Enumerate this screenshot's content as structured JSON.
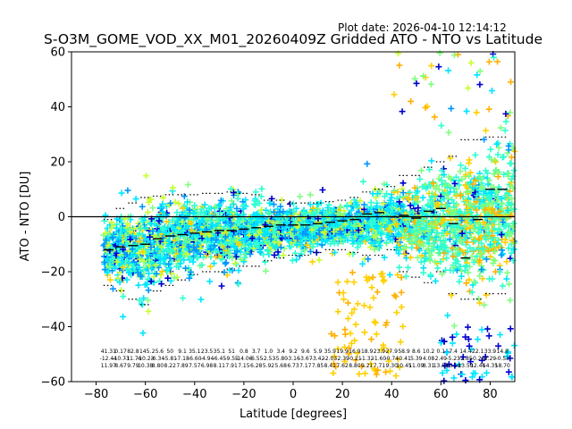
{
  "chart_data": {
    "type": "scatter",
    "title": "S-O3M_GOME_VOD_XX_M01_20260409Z Gridded ATO - NTO vs Latitude",
    "plot_date": "Plot date: 2026-04-10 12:14:12",
    "xlabel": "Latitude [degrees]",
    "ylabel": "ATO - NTO [DU]",
    "xlim": [
      -90,
      90
    ],
    "ylim": [
      -60,
      60
    ],
    "xticks": [
      -80,
      -60,
      -40,
      -20,
      0,
      20,
      40,
      60,
      80
    ],
    "xtick_labels": [
      "−80",
      "−60",
      "−40",
      "−20",
      "0",
      "20",
      "40",
      "60",
      "80"
    ],
    "yticks": [
      -60,
      -40,
      -20,
      0,
      20,
      40,
      60
    ],
    "ytick_labels": [
      "−60",
      "−40",
      "−20",
      "0",
      "20",
      "40",
      "60"
    ],
    "grid": false,
    "marker": "+",
    "zero_line": 0,
    "colors": [
      "#0000cd",
      "#0096ff",
      "#00e5ff",
      "#2fffd0",
      "#7fff7f",
      "#c8ff30",
      "#ffd000",
      "#ffb000"
    ],
    "lat_bins": [
      -75,
      -70,
      -65,
      -60,
      -55,
      -50,
      -45,
      -40,
      -35,
      -30,
      -25,
      -20,
      -15,
      -10,
      -5,
      0,
      5,
      10,
      15,
      20,
      25,
      30,
      35,
      40,
      45,
      50,
      55,
      60,
      65,
      70,
      75,
      80,
      85
    ],
    "bin_means": [
      -12,
      -11,
      -10.5,
      -10,
      -8,
      -7,
      -6.5,
      -6,
      -5.5,
      -5,
      -5,
      -4.5,
      -4,
      -3.5,
      -3,
      -3,
      -3,
      -2.5,
      -2,
      -1.5,
      -1,
      1,
      1.5,
      0,
      0.5,
      -0.5,
      2,
      3,
      -2.5,
      -15,
      -1,
      10,
      10
    ],
    "bin_upper": [
      -1,
      3,
      5,
      7,
      7.5,
      8,
      8,
      8,
      8.5,
      8.5,
      9,
      8.5,
      8,
      6,
      6,
      5,
      5,
      5,
      5.5,
      6,
      7,
      9,
      10,
      11,
      15,
      15,
      18,
      20,
      22,
      28,
      28,
      29,
      29
    ],
    "bin_lower": [
      -25,
      -27,
      -30,
      -32,
      -27,
      -25,
      -23,
      -21,
      -20,
      -20,
      -19,
      -18,
      -18,
      -16,
      -15,
      -14,
      -14,
      -13,
      -12,
      -12,
      -13,
      -14,
      -14,
      -12,
      -20,
      -22,
      -24,
      -20,
      -28,
      -30,
      -30,
      -28,
      -28
    ],
    "stats_row1": [
      "41.31",
      "0.17",
      "82.8",
      "145.",
      "25.6",
      "50",
      "9.1",
      "35.1",
      "23.5",
      "35.1",
      "51",
      "0.8",
      "3.7",
      "1.0",
      "3.4",
      "9.2",
      "9.6",
      "5.9",
      "35.9",
      "19.9",
      "16.9",
      "18.9",
      "23.9",
      "27.9",
      "58.9",
      "8.6",
      "10.2",
      "0.1",
      "7.4",
      "14.4",
      "22.1",
      "33.9",
      "14.8"
    ],
    "stats_row2": [
      "-12.44",
      "-10.73",
      "-11.76",
      "-10.23",
      "-6.34",
      "-5.81",
      "-7.18",
      "-6.60",
      "-4.94",
      "-6.45",
      "-9.55",
      "-14.06",
      "-6.55",
      "-2.53",
      "-5.80",
      "-3.16",
      "-3.67",
      "-3.42",
      "-2.03",
      "-2.39",
      "-0.21",
      "-1.32",
      "-1.60",
      "-0.74",
      "-0.41",
      "5.39",
      "4.08",
      "2.49",
      "-5.23",
      "-2.85",
      "-0.24",
      "3.29",
      "-0.53"
    ],
    "stats_row3": [
      "11.97",
      "8.67",
      "9.79",
      "10.38",
      "8.80",
      "8.22",
      "7.89",
      "7.57",
      "6.98",
      "8.11",
      "7.91",
      "7.15",
      "6.28",
      "5.92",
      "5.68",
      "6.73",
      "7.17",
      "7.85",
      "8.41",
      "7.62",
      "8.80",
      "9.21",
      "7.71",
      "9.30",
      "10.45",
      "11.09",
      "8.31",
      "13.57",
      "16.18",
      "13.50",
      "12.46",
      "14.35",
      "18.70"
    ]
  }
}
